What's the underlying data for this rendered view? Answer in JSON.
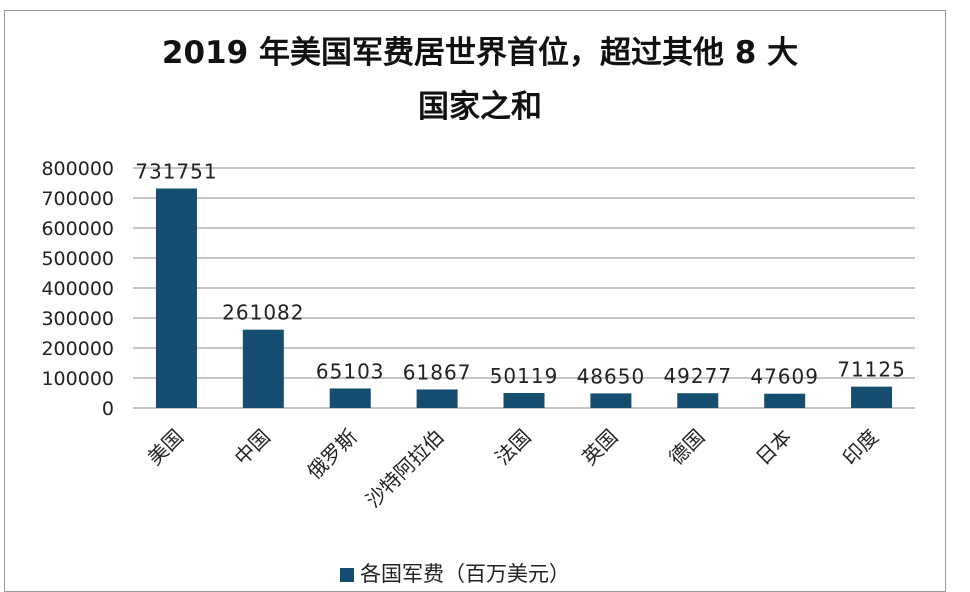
{
  "chart_data": {
    "type": "bar",
    "title_line1": "2019 年美国军费居世界首位，超过其他 8 大",
    "title_line2": "国家之和",
    "categories": [
      "美国",
      "中国",
      "俄罗斯",
      "沙特阿拉伯",
      "法国",
      "英国",
      "德国",
      "日本",
      "印度"
    ],
    "series": [
      {
        "name": "各国军费（百万美元）",
        "values": [
          731751,
          261082,
          65103,
          61867,
          50119,
          48650,
          49277,
          47609,
          71125
        ]
      }
    ],
    "y_ticks": [
      "0",
      "100000",
      "200000",
      "300000",
      "400000",
      "500000",
      "600000",
      "700000",
      "800000"
    ],
    "ylim": [
      0,
      800000
    ],
    "grid": true,
    "legend_position": "bottom",
    "bar_color": "#154d6e",
    "grid_color": "#8c8c8c"
  }
}
